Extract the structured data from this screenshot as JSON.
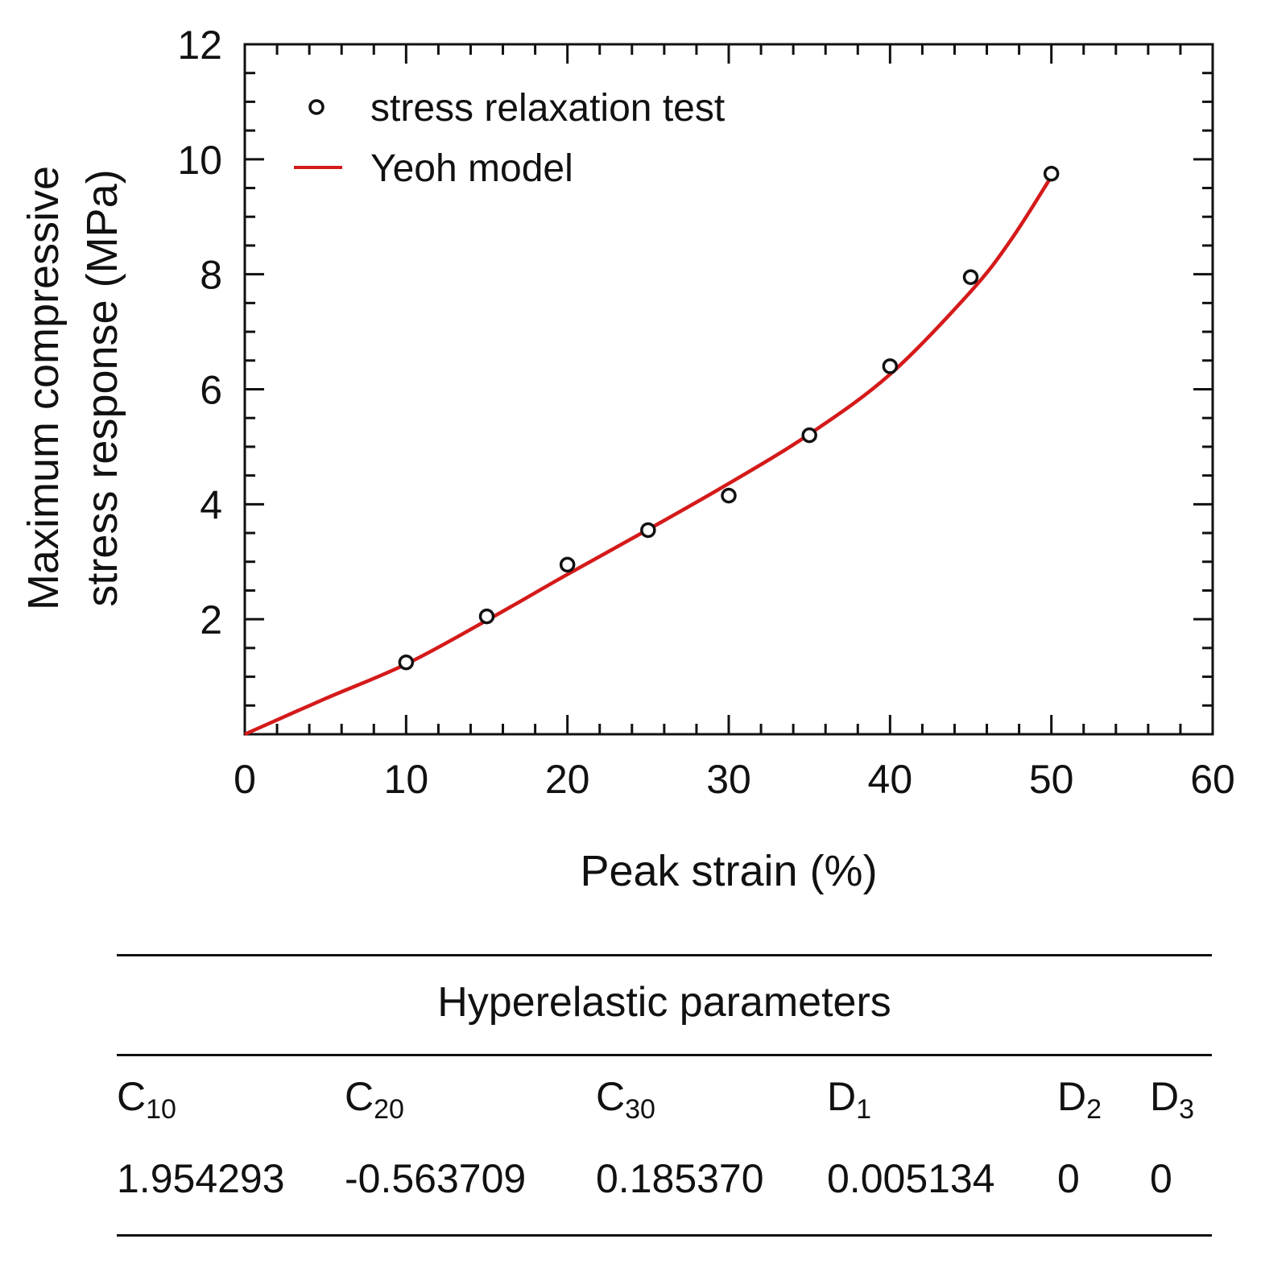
{
  "chart_data": {
    "type": "scatter",
    "xlabel": "Peak strain (%)",
    "ylabel_lines": [
      "Maximum compressive",
      "stress response (MPa)"
    ],
    "xlim": [
      0,
      60
    ],
    "ylim": [
      0,
      12
    ],
    "x_ticks": [
      0,
      10,
      20,
      30,
      40,
      50,
      60
    ],
    "y_ticks": [
      2,
      4,
      6,
      8,
      10,
      12
    ],
    "x_tick_labels": [
      "0",
      "10",
      "20",
      "30",
      "40",
      "50",
      "60"
    ],
    "y_tick_labels": [
      "2",
      "4",
      "6",
      "8",
      "10",
      "12"
    ],
    "x_minor_step": 2,
    "y_minor_step": 0.5,
    "legend": {
      "placement": "top-left",
      "entries": [
        "stress relaxation test",
        "Yeoh model"
      ]
    },
    "series": [
      {
        "name": "stress relaxation test",
        "kind": "scatter",
        "marker": "open-circle",
        "color": "#111111",
        "x": [
          10,
          15,
          20,
          25,
          30,
          35,
          40,
          45,
          50
        ],
        "y": [
          1.25,
          2.05,
          2.95,
          3.55,
          4.15,
          5.2,
          6.4,
          7.95,
          9.75
        ]
      },
      {
        "name": "Yeoh model",
        "kind": "line",
        "color": "#d41a1a",
        "x": [
          0,
          5,
          10,
          15,
          20,
          25,
          30,
          35,
          40,
          45,
          47.5,
          50
        ],
        "y": [
          0,
          0.62,
          1.22,
          1.98,
          2.78,
          3.56,
          4.36,
          5.22,
          6.26,
          7.7,
          8.6,
          9.7
        ]
      }
    ]
  },
  "table": {
    "title": "Hyperelastic parameters",
    "headers": [
      {
        "symbol": "C",
        "sub": "10"
      },
      {
        "symbol": "C",
        "sub": "20"
      },
      {
        "symbol": "C",
        "sub": "30"
      },
      {
        "symbol": "D",
        "sub": "1"
      },
      {
        "symbol": "D",
        "sub": "2"
      },
      {
        "symbol": "D",
        "sub": "3"
      }
    ],
    "values": [
      "1.954293",
      "-0.563709",
      "0.185370",
      "0.005134",
      "0",
      "0"
    ]
  }
}
